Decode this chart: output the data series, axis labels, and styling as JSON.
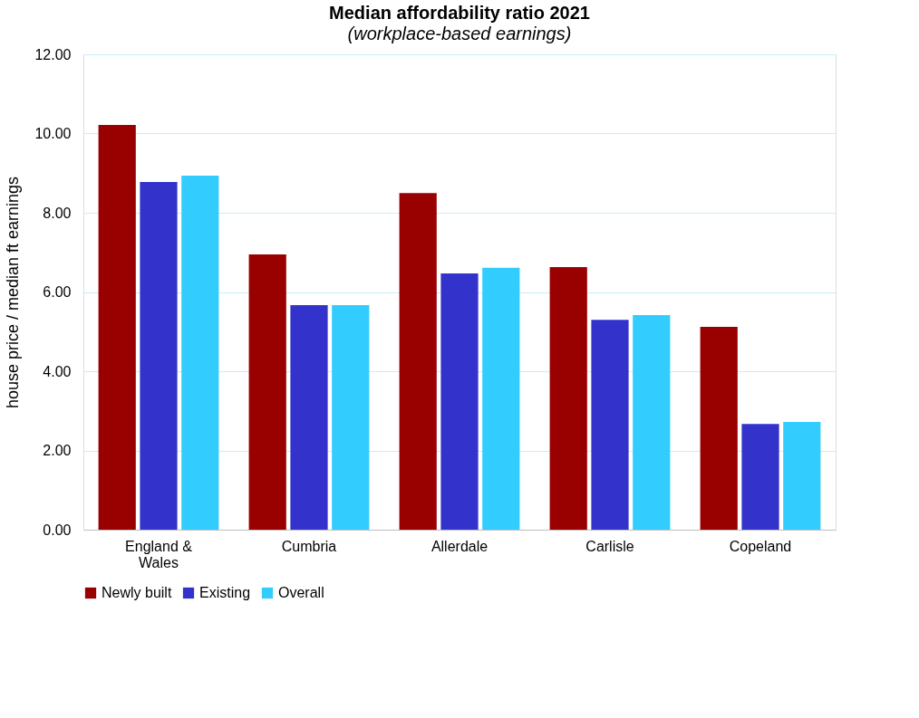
{
  "chart_data": {
    "type": "bar",
    "title": "Median affordability ratio 2021",
    "subtitle": "(workplace-based earnings)",
    "ylabel": "house price / median ft earnings",
    "categories": [
      "England & Wales",
      "Cumbria",
      "Allerdale",
      "Carlisle",
      "Copeland"
    ],
    "series": [
      {
        "name": "Newly built",
        "color": "#990000",
        "values": [
          10.22,
          6.95,
          8.5,
          6.63,
          5.12
        ]
      },
      {
        "name": "Existing",
        "color": "#3333cc",
        "values": [
          8.78,
          5.67,
          6.47,
          5.3,
          2.67
        ]
      },
      {
        "name": "Overall",
        "color": "#33ccff",
        "values": [
          8.94,
          5.67,
          6.61,
          5.42,
          2.72
        ]
      }
    ],
    "ylim": [
      0,
      12
    ],
    "yticks": [
      {
        "value": 0,
        "label": "0.00"
      },
      {
        "value": 2,
        "label": "2.00"
      },
      {
        "value": 4,
        "label": "4.00"
      },
      {
        "value": 6,
        "label": "6.00"
      },
      {
        "value": 8,
        "label": "8.00"
      },
      {
        "value": 10,
        "label": "10.00"
      },
      {
        "value": 12,
        "label": "12.00"
      }
    ],
    "grid": "y",
    "legend": "bottom"
  }
}
